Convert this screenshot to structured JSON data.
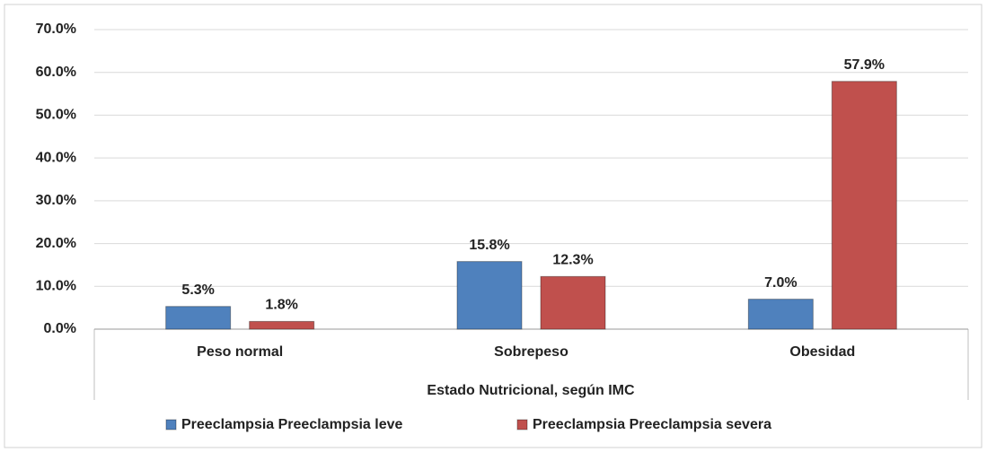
{
  "chart_data": {
    "type": "bar",
    "xlabel": "Estado Nutricional, según IMC",
    "categories": [
      "Peso normal",
      "Sobrepeso",
      "Obesidad"
    ],
    "series": [
      {
        "name": "Preeclampsia Preeclampsia leve",
        "color": "#4f81bd",
        "values": [
          5.3,
          15.8,
          7.0
        ],
        "value_labels": [
          "5.3%",
          "15.8%",
          "7.0%"
        ]
      },
      {
        "name": "Preeclampsia Preeclampsia severa",
        "color": "#c0504d",
        "values": [
          1.8,
          12.3,
          57.9
        ],
        "value_labels": [
          "1.8%",
          "12.3%",
          "57.9%"
        ]
      }
    ],
    "ylim": [
      0,
      70
    ],
    "yticks": [
      {
        "value": 0,
        "label": "0.0%"
      },
      {
        "value": 10,
        "label": "10.0%"
      },
      {
        "value": 20,
        "label": "20.0%"
      },
      {
        "value": 30,
        "label": "30.0%"
      },
      {
        "value": 40,
        "label": "40.0%"
      },
      {
        "value": 50,
        "label": "50.0%"
      },
      {
        "value": 60,
        "label": "60.0%"
      },
      {
        "value": 70,
        "label": "70.0%"
      }
    ],
    "grid": true,
    "legend": "bottom"
  }
}
